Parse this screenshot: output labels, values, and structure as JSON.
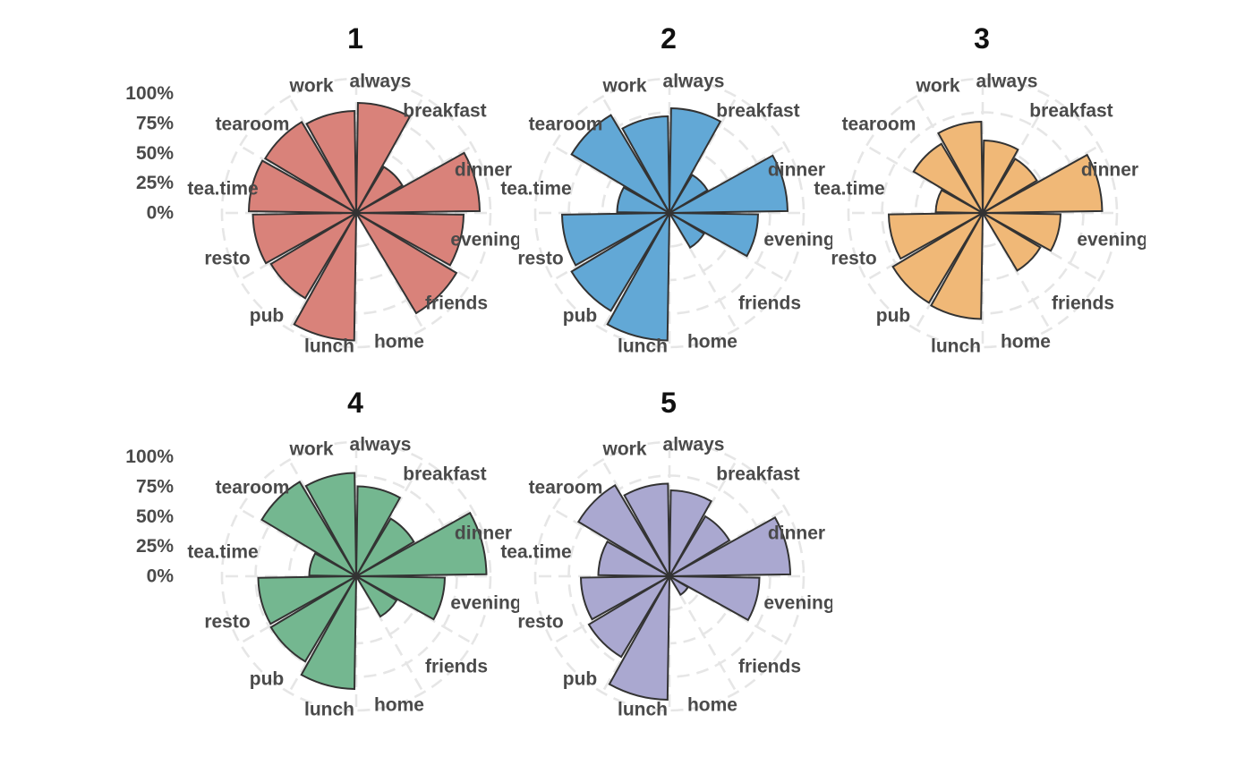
{
  "chart_data": {
    "type": "bar",
    "subtype": "polar-bar",
    "categories": [
      "always",
      "breakfast",
      "dinner",
      "evening",
      "friends",
      "home",
      "lunch",
      "pub",
      "resto",
      "tea.time",
      "tearoom",
      "work"
    ],
    "radial_ticks": [
      "0%",
      "25%",
      "50%",
      "75%",
      "100%"
    ],
    "ylim": [
      0,
      100
    ],
    "grid": true,
    "panels": [
      {
        "title": "1",
        "color": "#D9827A",
        "values": [
          82,
          40,
          92,
          80,
          87,
          0,
          95,
          74,
          77,
          80,
          79,
          76
        ]
      },
      {
        "title": "2",
        "color": "#62A8D6",
        "values": [
          78,
          33,
          88,
          66,
          30,
          0,
          95,
          85,
          80,
          39,
          85,
          72
        ]
      },
      {
        "title": "3",
        "color": "#F0B877",
        "values": [
          54,
          47,
          89,
          58,
          50,
          0,
          79,
          78,
          70,
          35,
          60,
          68
        ]
      },
      {
        "title": "4",
        "color": "#74B790",
        "values": [
          67,
          50,
          97,
          66,
          35,
          0,
          84,
          74,
          73,
          35,
          82,
          77
        ]
      },
      {
        "title": "5",
        "color": "#AAA8D0",
        "values": [
          64,
          52,
          90,
          67,
          16,
          0,
          92,
          70,
          66,
          53,
          79,
          69
        ]
      }
    ]
  }
}
